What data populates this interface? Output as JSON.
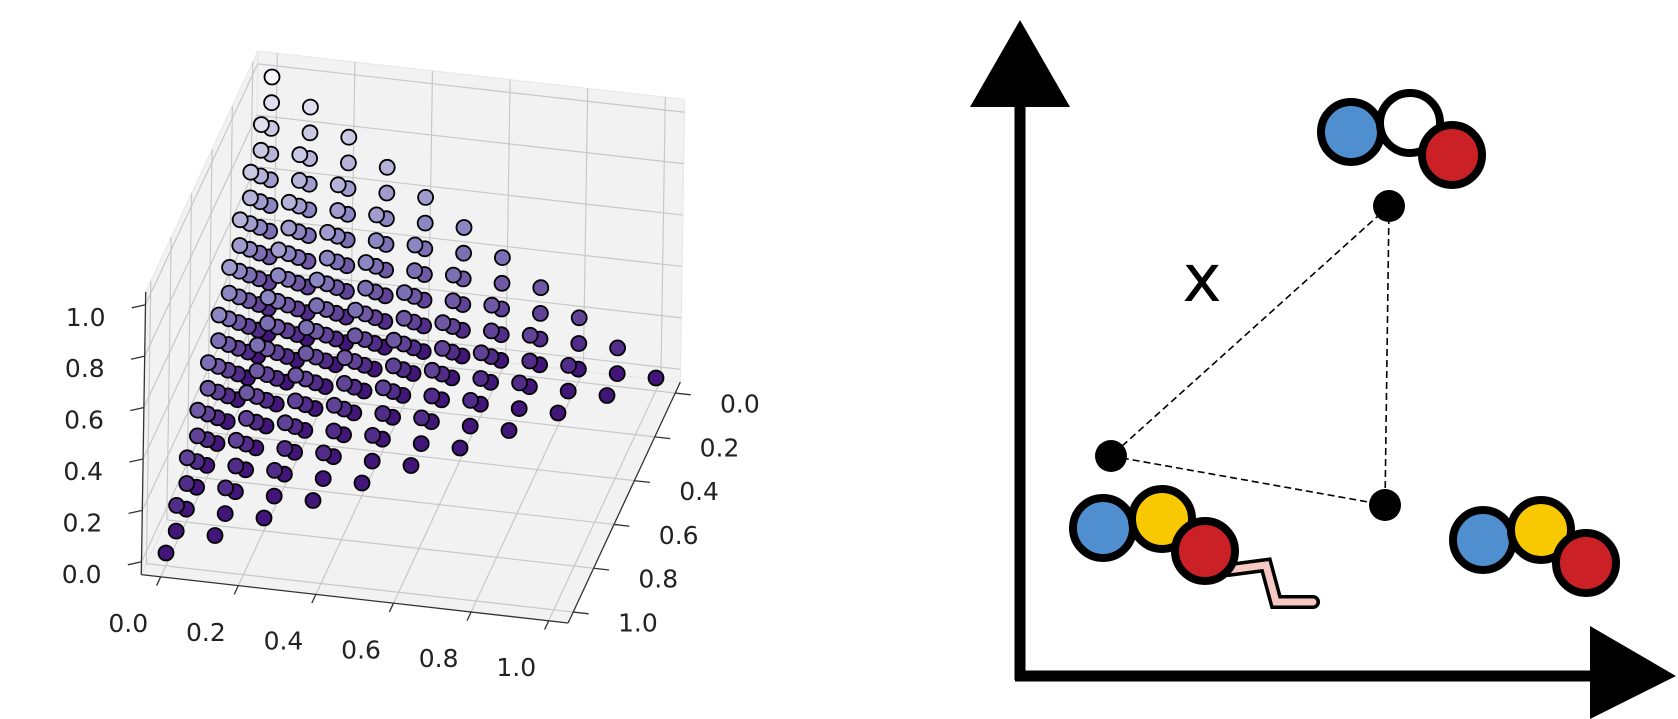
{
  "chart_data": {
    "type": "scatter3d",
    "xlim": [
      -0.05,
      1.05
    ],
    "ylim": [
      -0.05,
      1.05
    ],
    "zlim": [
      -0.05,
      1.05
    ],
    "xticks": [
      {
        "value": 0,
        "label": "0.0"
      },
      {
        "value": 0.2,
        "label": "0.2"
      },
      {
        "value": 0.4,
        "label": "0.4"
      },
      {
        "value": 0.6,
        "label": "0.6"
      },
      {
        "value": 0.8,
        "label": "0.8"
      },
      {
        "value": 1,
        "label": "1.0"
      }
    ],
    "yticks": [
      {
        "value": 0,
        "label": "0.0"
      },
      {
        "value": 0.2,
        "label": "0.2"
      },
      {
        "value": 0.4,
        "label": "0.4"
      },
      {
        "value": 0.6,
        "label": "0.6"
      },
      {
        "value": 0.8,
        "label": "0.8"
      },
      {
        "value": 1,
        "label": "1.0"
      }
    ],
    "zticks": [
      {
        "value": 0,
        "label": "0.0"
      },
      {
        "value": 0.2,
        "label": "0.2"
      },
      {
        "value": 0.4,
        "label": "0.4"
      },
      {
        "value": 0.6,
        "label": "0.6"
      },
      {
        "value": 0.8,
        "label": "0.8"
      },
      {
        "value": 1,
        "label": "1.0"
      }
    ],
    "grid": true,
    "colormap": [
      "#3b0a72",
      "#8c86c2",
      "#ffffff"
    ],
    "x": [
      0,
      0,
      0,
      0,
      0,
      0,
      0,
      0,
      0,
      0,
      0,
      0,
      0,
      0,
      0,
      0,
      0,
      0,
      0,
      0,
      0,
      0,
      0,
      0,
      0,
      0,
      0,
      0,
      0,
      0,
      0,
      0,
      0,
      0,
      0,
      0,
      0,
      0,
      0,
      0,
      0,
      0,
      0,
      0,
      0,
      0,
      0,
      0,
      0,
      0,
      0,
      0,
      0,
      0,
      0,
      0,
      0,
      0,
      0,
      0,
      0,
      0,
      0,
      0,
      0,
      0,
      0.1,
      0.1,
      0.1,
      0.1,
      0.1,
      0.1,
      0.1,
      0.1,
      0.1,
      0.1,
      0.1,
      0.1,
      0.1,
      0.1,
      0.1,
      0.1,
      0.1,
      0.1,
      0.1,
      0.1,
      0.1,
      0.1,
      0.1,
      0.1,
      0.1,
      0.1,
      0.1,
      0.1,
      0.1,
      0.1,
      0.1,
      0.1,
      0.1,
      0.1,
      0.1,
      0.1,
      0.1,
      0.1,
      0.1,
      0.1,
      0.1,
      0.1,
      0.1,
      0.1,
      0.1,
      0.1,
      0.1,
      0.1,
      0.1,
      0.1,
      0.1,
      0.1,
      0.1,
      0.1,
      0.1,
      0.2,
      0.2,
      0.2,
      0.2,
      0.2,
      0.2,
      0.2,
      0.2,
      0.2,
      0.2,
      0.2,
      0.2,
      0.2,
      0.2,
      0.2,
      0.2,
      0.2,
      0.2,
      0.2,
      0.2,
      0.2,
      0.2,
      0.2,
      0.2,
      0.2,
      0.2,
      0.2,
      0.2,
      0.2,
      0.2,
      0.2,
      0.2,
      0.2,
      0.2,
      0.2,
      0.2,
      0.2,
      0.2,
      0.2,
      0.2,
      0.2,
      0.2,
      0.2,
      0.2,
      0.2,
      0.3,
      0.3,
      0.3,
      0.3,
      0.3,
      0.3,
      0.3,
      0.3,
      0.3,
      0.3,
      0.3,
      0.3,
      0.3,
      0.3,
      0.3,
      0.3,
      0.3,
      0.3,
      0.3,
      0.3,
      0.3,
      0.3,
      0.3,
      0.3,
      0.3,
      0.3,
      0.3,
      0.3,
      0.3,
      0.3,
      0.3,
      0.3,
      0.3,
      0.3,
      0.3,
      0.3,
      0.4,
      0.4,
      0.4,
      0.4,
      0.4,
      0.4,
      0.4,
      0.4,
      0.4,
      0.4,
      0.4,
      0.4,
      0.4,
      0.4,
      0.4,
      0.4,
      0.4,
      0.4,
      0.4,
      0.4,
      0.4,
      0.4,
      0.4,
      0.4,
      0.4,
      0.4,
      0.4,
      0.4,
      0.5,
      0.5,
      0.5,
      0.5,
      0.5,
      0.5,
      0.5,
      0.5,
      0.5,
      0.5,
      0.5,
      0.5,
      0.5,
      0.5,
      0.5,
      0.5,
      0.5,
      0.5,
      0.5,
      0.5,
      0.5,
      0.6,
      0.6,
      0.6,
      0.6,
      0.6,
      0.6,
      0.6,
      0.6,
      0.6,
      0.6,
      0.6,
      0.6,
      0.6,
      0.6,
      0.6,
      0.7,
      0.7,
      0.7,
      0.7,
      0.7,
      0.7,
      0.7,
      0.7,
      0.7,
      0.7,
      0.8,
      0.8,
      0.8,
      0.8,
      0.8,
      0.8,
      0.9,
      0.9,
      0.9,
      1
    ],
    "y": [
      0,
      0,
      0,
      0,
      0,
      0,
      0,
      0,
      0,
      0,
      0,
      0.1,
      0.1,
      0.1,
      0.1,
      0.1,
      0.1,
      0.1,
      0.1,
      0.1,
      0.1,
      0.2,
      0.2,
      0.2,
      0.2,
      0.2,
      0.2,
      0.2,
      0.2,
      0.2,
      0.3,
      0.3,
      0.3,
      0.3,
      0.3,
      0.3,
      0.3,
      0.3,
      0.4,
      0.4,
      0.4,
      0.4,
      0.4,
      0.4,
      0.4,
      0.5,
      0.5,
      0.5,
      0.5,
      0.5,
      0.5,
      0.6,
      0.6,
      0.6,
      0.6,
      0.6,
      0.7,
      0.7,
      0.7,
      0.7,
      0.8,
      0.8,
      0.8,
      0.9,
      0.9,
      1,
      0,
      0,
      0,
      0,
      0,
      0,
      0,
      0,
      0,
      0,
      0.1,
      0.1,
      0.1,
      0.1,
      0.1,
      0.1,
      0.1,
      0.1,
      0.1,
      0.2,
      0.2,
      0.2,
      0.2,
      0.2,
      0.2,
      0.2,
      0.2,
      0.3,
      0.3,
      0.3,
      0.3,
      0.3,
      0.3,
      0.3,
      0.4,
      0.4,
      0.4,
      0.4,
      0.4,
      0.4,
      0.5,
      0.5,
      0.5,
      0.5,
      0.5,
      0.6,
      0.6,
      0.6,
      0.6,
      0.7,
      0.7,
      0.7,
      0.8,
      0.8,
      0.9,
      0,
      0,
      0,
      0,
      0,
      0,
      0,
      0,
      0,
      0.1,
      0.1,
      0.1,
      0.1,
      0.1,
      0.1,
      0.1,
      0.1,
      0.2,
      0.2,
      0.2,
      0.2,
      0.2,
      0.2,
      0.2,
      0.3,
      0.3,
      0.3,
      0.3,
      0.3,
      0.3,
      0.4,
      0.4,
      0.4,
      0.4,
      0.4,
      0.5,
      0.5,
      0.5,
      0.5,
      0.6,
      0.6,
      0.6,
      0.7,
      0.7,
      0.8,
      0,
      0,
      0,
      0,
      0,
      0,
      0,
      0,
      0.1,
      0.1,
      0.1,
      0.1,
      0.1,
      0.1,
      0.1,
      0.2,
      0.2,
      0.2,
      0.2,
      0.2,
      0.2,
      0.3,
      0.3,
      0.3,
      0.3,
      0.3,
      0.4,
      0.4,
      0.4,
      0.4,
      0.5,
      0.5,
      0.5,
      0.6,
      0.6,
      0.7,
      0,
      0,
      0,
      0,
      0,
      0,
      0,
      0.1,
      0.1,
      0.1,
      0.1,
      0.1,
      0.1,
      0.2,
      0.2,
      0.2,
      0.2,
      0.2,
      0.3,
      0.3,
      0.3,
      0.3,
      0.4,
      0.4,
      0.4,
      0.5,
      0.5,
      0.6,
      0,
      0,
      0,
      0,
      0,
      0,
      0.1,
      0.1,
      0.1,
      0.1,
      0.1,
      0.2,
      0.2,
      0.2,
      0.2,
      0.3,
      0.3,
      0.3,
      0.4,
      0.4,
      0.5,
      0,
      0,
      0,
      0,
      0,
      0.1,
      0.1,
      0.1,
      0.1,
      0.2,
      0.2,
      0.2,
      0.3,
      0.3,
      0.4,
      0,
      0,
      0,
      0,
      0.1,
      0.1,
      0.1,
      0.2,
      0.2,
      0.3,
      0,
      0,
      0,
      0.1,
      0.1,
      0.2,
      0,
      0,
      0.1,
      0
    ],
    "z": [
      0,
      0.1,
      0.2,
      0.3,
      0.4,
      0.5,
      0.6,
      0.7,
      0.8,
      0.9,
      1,
      0,
      0.1,
      0.2,
      0.3,
      0.4,
      0.5,
      0.6,
      0.7,
      0.8,
      0.9,
      0,
      0.1,
      0.2,
      0.3,
      0.4,
      0.5,
      0.6,
      0.7,
      0.8,
      0,
      0.1,
      0.2,
      0.3,
      0.4,
      0.5,
      0.6,
      0.7,
      0,
      0.1,
      0.2,
      0.3,
      0.4,
      0.5,
      0.6,
      0,
      0.1,
      0.2,
      0.3,
      0.4,
      0.5,
      0,
      0.1,
      0.2,
      0.3,
      0.4,
      0,
      0.1,
      0.2,
      0.3,
      0,
      0.1,
      0.2,
      0,
      0.1,
      0,
      0,
      0.1,
      0.2,
      0.3,
      0.4,
      0.5,
      0.6,
      0.7,
      0.8,
      0.9,
      0,
      0.1,
      0.2,
      0.3,
      0.4,
      0.5,
      0.6,
      0.7,
      0.8,
      0,
      0.1,
      0.2,
      0.3,
      0.4,
      0.5,
      0.6,
      0.7,
      0,
      0.1,
      0.2,
      0.3,
      0.4,
      0.5,
      0.6,
      0,
      0.1,
      0.2,
      0.3,
      0.4,
      0.5,
      0,
      0.1,
      0.2,
      0.3,
      0.4,
      0,
      0.1,
      0.2,
      0.3,
      0,
      0.1,
      0.2,
      0,
      0.1,
      0,
      0,
      0.1,
      0.2,
      0.3,
      0.4,
      0.5,
      0.6,
      0.7,
      0.8,
      0,
      0.1,
      0.2,
      0.3,
      0.4,
      0.5,
      0.6,
      0.7,
      0,
      0.1,
      0.2,
      0.3,
      0.4,
      0.5,
      0.6,
      0,
      0.1,
      0.2,
      0.3,
      0.4,
      0.5,
      0,
      0.1,
      0.2,
      0.3,
      0.4,
      0,
      0.1,
      0.2,
      0.3,
      0,
      0.1,
      0.2,
      0,
      0.1,
      0,
      0,
      0.1,
      0.2,
      0.3,
      0.4,
      0.5,
      0.6,
      0.7,
      0,
      0.1,
      0.2,
      0.3,
      0.4,
      0.5,
      0.6,
      0,
      0.1,
      0.2,
      0.3,
      0.4,
      0.5,
      0,
      0.1,
      0.2,
      0.3,
      0.4,
      0,
      0.1,
      0.2,
      0.3,
      0,
      0.1,
      0.2,
      0,
      0.1,
      0,
      0,
      0.1,
      0.2,
      0.3,
      0.4,
      0.5,
      0.6,
      0,
      0.1,
      0.2,
      0.3,
      0.4,
      0.5,
      0,
      0.1,
      0.2,
      0.3,
      0.4,
      0,
      0.1,
      0.2,
      0.3,
      0,
      0.1,
      0.2,
      0,
      0.1,
      0,
      0,
      0.1,
      0.2,
      0.3,
      0.4,
      0.5,
      0,
      0.1,
      0.2,
      0.3,
      0.4,
      0,
      0.1,
      0.2,
      0.3,
      0,
      0.1,
      0.2,
      0,
      0.1,
      0,
      0,
      0.1,
      0.2,
      0.3,
      0.4,
      0,
      0.1,
      0.2,
      0.3,
      0,
      0.1,
      0.2,
      0,
      0.1,
      0,
      0,
      0.1,
      0.2,
      0.3,
      0,
      0.1,
      0.2,
      0,
      0.1,
      0,
      0,
      0.1,
      0.2,
      0,
      0.1,
      0,
      0,
      0.1,
      0,
      0
    ]
  },
  "diagram": {
    "label": "x"
  }
}
